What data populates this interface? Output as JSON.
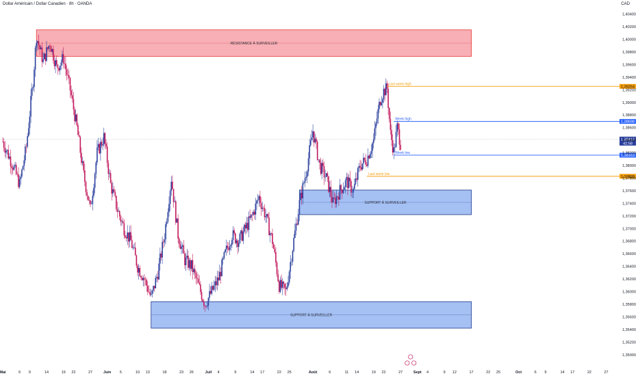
{
  "header": {
    "title": "Dollar Américain / Dollar Canadien · 8h · OANDA",
    "currency": "CAD"
  },
  "colors": {
    "bull": "#2a3f9d",
    "bear": "#c2185b",
    "resistance_fill": "#f7a1a8",
    "resistance_border": "#e53935",
    "support_fill": "#8fb0f0",
    "support_border": "#1e3a8a",
    "orange": "#f59e0b",
    "blue": "#2962ff",
    "current": "#2a3f9d"
  },
  "chart_data": {
    "type": "candlestick",
    "y_axis": {
      "range": [
        1.349,
        1.4045
      ],
      "ticks": [
        "1,40400",
        "1,40200",
        "1,40000",
        "1,39800",
        "1,39600",
        "1,39400",
        "1,39200",
        "1,39000",
        "1,38800",
        "1,38600",
        "1,38400",
        "1,38200",
        "1,38000",
        "1,37800",
        "1,37600",
        "1,37400",
        "1,37200",
        "1,37000",
        "1,36800",
        "1,36600",
        "1,36400",
        "1,36200",
        "1,36000",
        "1,35800",
        "1,35600",
        "1,35400",
        "1,35200",
        "1,35000"
      ],
      "tick_values": [
        1.404,
        1.402,
        1.4,
        1.398,
        1.396,
        1.394,
        1.392,
        1.39,
        1.388,
        1.386,
        1.384,
        1.382,
        1.38,
        1.378,
        1.376,
        1.374,
        1.372,
        1.37,
        1.368,
        1.366,
        1.364,
        1.362,
        1.36,
        1.358,
        1.356,
        1.354,
        1.352,
        1.35
      ]
    },
    "x_axis": {
      "labels": [
        {
          "t": "Mai",
          "d": 0,
          "bold": true
        },
        {
          "t": "6",
          "d": 5
        },
        {
          "t": "9",
          "d": 8
        },
        {
          "t": "14",
          "d": 13
        },
        {
          "t": "19",
          "d": 18
        },
        {
          "t": "22",
          "d": 21
        },
        {
          "t": "27",
          "d": 26
        },
        {
          "t": "Juin",
          "d": 31,
          "bold": true
        },
        {
          "t": "5",
          "d": 35
        },
        {
          "t": "10",
          "d": 40
        },
        {
          "t": "13",
          "d": 43
        },
        {
          "t": "18",
          "d": 48
        },
        {
          "t": "23",
          "d": 53
        },
        {
          "t": "26",
          "d": 56
        },
        {
          "t": "Juil",
          "d": 61,
          "bold": true
        },
        {
          "t": "4",
          "d": 64
        },
        {
          "t": "9",
          "d": 69
        },
        {
          "t": "14",
          "d": 74
        },
        {
          "t": "17",
          "d": 77
        },
        {
          "t": "22",
          "d": 82
        },
        {
          "t": "25",
          "d": 85
        },
        {
          "t": "Août",
          "d": 92,
          "bold": true
        },
        {
          "t": "6",
          "d": 97
        },
        {
          "t": "11",
          "d": 102
        },
        {
          "t": "14",
          "d": 105
        },
        {
          "t": "19",
          "d": 110
        },
        {
          "t": "22",
          "d": 113
        },
        {
          "t": "27",
          "d": 118
        },
        {
          "t": "Sept",
          "d": 123,
          "bold": true
        },
        {
          "t": "4",
          "d": 126
        },
        {
          "t": "9",
          "d": 131
        },
        {
          "t": "12",
          "d": 134
        },
        {
          "t": "17",
          "d": 139
        },
        {
          "t": "22",
          "d": 144
        },
        {
          "t": "25",
          "d": 147
        },
        {
          "t": "Oct",
          "d": 153,
          "bold": true
        },
        {
          "t": "6",
          "d": 158
        },
        {
          "t": "9",
          "d": 161
        },
        {
          "t": "14",
          "d": 166
        },
        {
          "t": "17",
          "d": 169
        },
        {
          "t": "22",
          "d": 174
        },
        {
          "t": "27",
          "d": 179
        }
      ]
    },
    "zones": [
      {
        "label": "RÉSISTANCE À SURVEILLER",
        "top": 1.4015,
        "bottom": 1.3973,
        "d_start": 10,
        "d_end": 139,
        "kind": "resistance"
      },
      {
        "label": "SUPPORT À SURVEILLER",
        "top": 1.3761,
        "bottom": 1.3722,
        "d_start": 88,
        "d_end": 139,
        "kind": "support"
      },
      {
        "label": "SUPPORT À SURVEILLER",
        "top": 1.3584,
        "bottom": 1.3542,
        "d_start": 44,
        "d_end": 139,
        "kind": "support"
      }
    ],
    "levels": [
      {
        "label": "Last week high",
        "price": 1.39254,
        "tag": "1,39254",
        "d_start": 114,
        "color": "orange"
      },
      {
        "label": "Week high",
        "price": 1.38698,
        "tag": "1,38698",
        "d_start": 116,
        "color": "blue"
      },
      {
        "label": "Week low",
        "price": 1.38163,
        "tag": "1,38163",
        "d_start": 116,
        "color": "blue"
      },
      {
        "label": "Last week low",
        "price": 1.37828,
        "tag": "1,37828",
        "d_start": 108,
        "color": "orange"
      }
    ],
    "current": {
      "price": 1.38413,
      "tag": "1,38413",
      "countdown": "42:58"
    },
    "anchors": [
      [
        0,
        1.3838
      ],
      [
        3,
        1.38
      ],
      [
        5,
        1.377
      ],
      [
        7,
        1.383
      ],
      [
        9,
        1.3935
      ],
      [
        10,
        1.4005
      ],
      [
        12,
        1.3965
      ],
      [
        14,
        1.3995
      ],
      [
        16,
        1.3955
      ],
      [
        18,
        1.397
      ],
      [
        20,
        1.392
      ],
      [
        22,
        1.386
      ],
      [
        24,
        1.3785
      ],
      [
        26,
        1.373
      ],
      [
        28,
        1.382
      ],
      [
        30,
        1.3845
      ],
      [
        32,
        1.377
      ],
      [
        34,
        1.373
      ],
      [
        36,
        1.37
      ],
      [
        38,
        1.368
      ],
      [
        40,
        1.364
      ],
      [
        42,
        1.362
      ],
      [
        44,
        1.359
      ],
      [
        46,
        1.363
      ],
      [
        48,
        1.369
      ],
      [
        50,
        1.378
      ],
      [
        52,
        1.369
      ],
      [
        54,
        1.365
      ],
      [
        56,
        1.364
      ],
      [
        58,
        1.361
      ],
      [
        60,
        1.358
      ],
      [
        62,
        1.36
      ],
      [
        64,
        1.362
      ],
      [
        66,
        1.366
      ],
      [
        68,
        1.369
      ],
      [
        70,
        1.368
      ],
      [
        72,
        1.37
      ],
      [
        74,
        1.372
      ],
      [
        76,
        1.375
      ],
      [
        78,
        1.372
      ],
      [
        80,
        1.368
      ],
      [
        82,
        1.361
      ],
      [
        84,
        1.36
      ],
      [
        86,
        1.367
      ],
      [
        88,
        1.374
      ],
      [
        90,
        1.379
      ],
      [
        92,
        1.3855
      ],
      [
        94,
        1.38
      ],
      [
        96,
        1.378
      ],
      [
        98,
        1.374
      ],
      [
        100,
        1.376
      ],
      [
        102,
        1.3775
      ],
      [
        104,
        1.376
      ],
      [
        106,
        1.38
      ],
      [
        108,
        1.381
      ],
      [
        110,
        1.384
      ],
      [
        111,
        1.3875
      ],
      [
        112,
        1.3905
      ],
      [
        113,
        1.3918
      ],
      [
        114,
        1.3922
      ],
      [
        115,
        1.385
      ],
      [
        116,
        1.3822
      ],
      [
        117,
        1.386
      ],
      [
        118,
        1.3835
      ]
    ],
    "grid": false
  }
}
